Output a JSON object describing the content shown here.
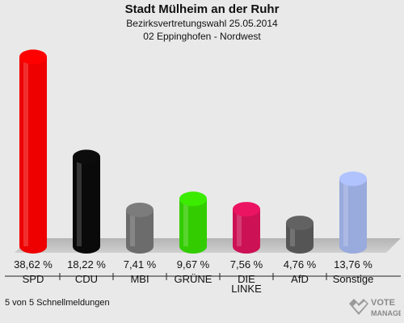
{
  "header": {
    "title": "Stadt Mülheim an der Ruhr",
    "subtitle1": "Bezirksvertretungswahl 25.05.2014",
    "subtitle2": "02 Eppinghofen - Nordwest"
  },
  "chart_data": {
    "type": "bar",
    "categories": [
      "SPD",
      "CDU",
      "MBI",
      "GRÜNE",
      "DIE\nLINKE",
      "AfD",
      "Sonstige"
    ],
    "values": [
      38.62,
      18.22,
      7.41,
      9.67,
      7.56,
      4.76,
      13.76
    ],
    "value_labels": [
      "38,62 %",
      "18,22 %",
      "7,41 %",
      "9,67 %",
      "7,56 %",
      "4,76 %",
      "13,76 %"
    ],
    "colors": [
      "#ee0000",
      "#0a0a0a",
      "#6c6c6c",
      "#33cc00",
      "#cc1155",
      "#555555",
      "#99aadd"
    ],
    "ylim": [
      0,
      40
    ],
    "grid": false,
    "legend": "none"
  },
  "footer": {
    "status": "5 von 5 Schnellmeldungen",
    "logo_line1": "VOTE",
    "logo_line2": "MANAGER"
  }
}
